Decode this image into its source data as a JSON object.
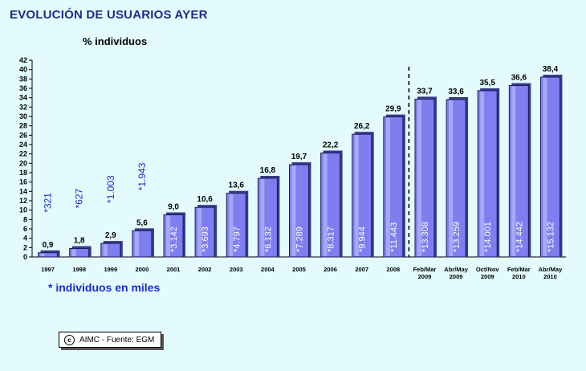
{
  "header": {
    "title": "EVOLUCIÓN DE USUARIOS AYER",
    "subtitle": "% individuos"
  },
  "footnote": "* individuos en miles",
  "source": {
    "text": "AIMC - Fuente: EGM",
    "icon": "copyright-icon",
    "icon_glyph": "c"
  },
  "colors": {
    "background": "#e3fbfd",
    "bar": "#7e7ef0",
    "bar_highlight": "#b9b9ff",
    "bar_shadow": "#3a3a8c",
    "title": "#1f2a8c",
    "annotation_outside": "#1a2ad0",
    "annotation_inside": "#ffffff"
  },
  "chart_data": {
    "type": "bar",
    "categories": [
      "1997",
      "1998",
      "1999",
      "2000",
      "2001",
      "2002",
      "2003",
      "2004",
      "2005",
      "2006",
      "2007",
      "2008",
      "Feb/Mar 2009",
      "Abr/May 2009",
      "Oct/Nov 2009",
      "Feb/Mar 2010",
      "Abr/May 2010"
    ],
    "category_lines": [
      [
        "1997"
      ],
      [
        "1998"
      ],
      [
        "1999"
      ],
      [
        "2000"
      ],
      [
        "2001"
      ],
      [
        "2002"
      ],
      [
        "2003"
      ],
      [
        "2004"
      ],
      [
        "2005"
      ],
      [
        "2006"
      ],
      [
        "2007"
      ],
      [
        "2008"
      ],
      [
        "Feb/Mar",
        "2009"
      ],
      [
        "Abr/May",
        "2009"
      ],
      [
        "Oct/Nov",
        "2009"
      ],
      [
        "Feb/Mar",
        "2010"
      ],
      [
        "Abr/May",
        "2010"
      ]
    ],
    "values": [
      0.9,
      1.8,
      2.9,
      5.6,
      9.0,
      10.6,
      13.6,
      16.8,
      19.7,
      22.2,
      26.2,
      29.9,
      33.7,
      33.6,
      35.5,
      36.6,
      38.4
    ],
    "value_labels": [
      "0,9",
      "1,8",
      "2,9",
      "5,6",
      "9,0",
      "10,6",
      "13,6",
      "16,8",
      "19,7",
      "22,2",
      "26,2",
      "29,9",
      "33,7",
      "33,6",
      "35,5",
      "36,6",
      "38,4"
    ],
    "individuals_thousands": [
      "*321",
      "*627",
      "*1.003",
      "*1.943",
      "*3.142",
      "*3.693",
      "*4.797",
      "*6.132",
      "*7.289",
      "*8.317",
      "*9.944",
      "*11.443",
      "*13.308",
      "*13.259",
      "*14.001",
      "*14.442",
      "*15.132"
    ],
    "annotation_outside_count": 4,
    "ylim": [
      0,
      42
    ],
    "yticks": [
      0,
      2,
      4,
      6,
      8,
      10,
      12,
      14,
      16,
      18,
      20,
      22,
      24,
      26,
      28,
      30,
      32,
      34,
      36,
      38,
      40,
      42
    ],
    "divider_after_index": 11,
    "grid": false,
    "legend": "none",
    "title": "EVOLUCIÓN DE USUARIOS AYER",
    "ylabel": "% individuos",
    "xlabel": ""
  }
}
